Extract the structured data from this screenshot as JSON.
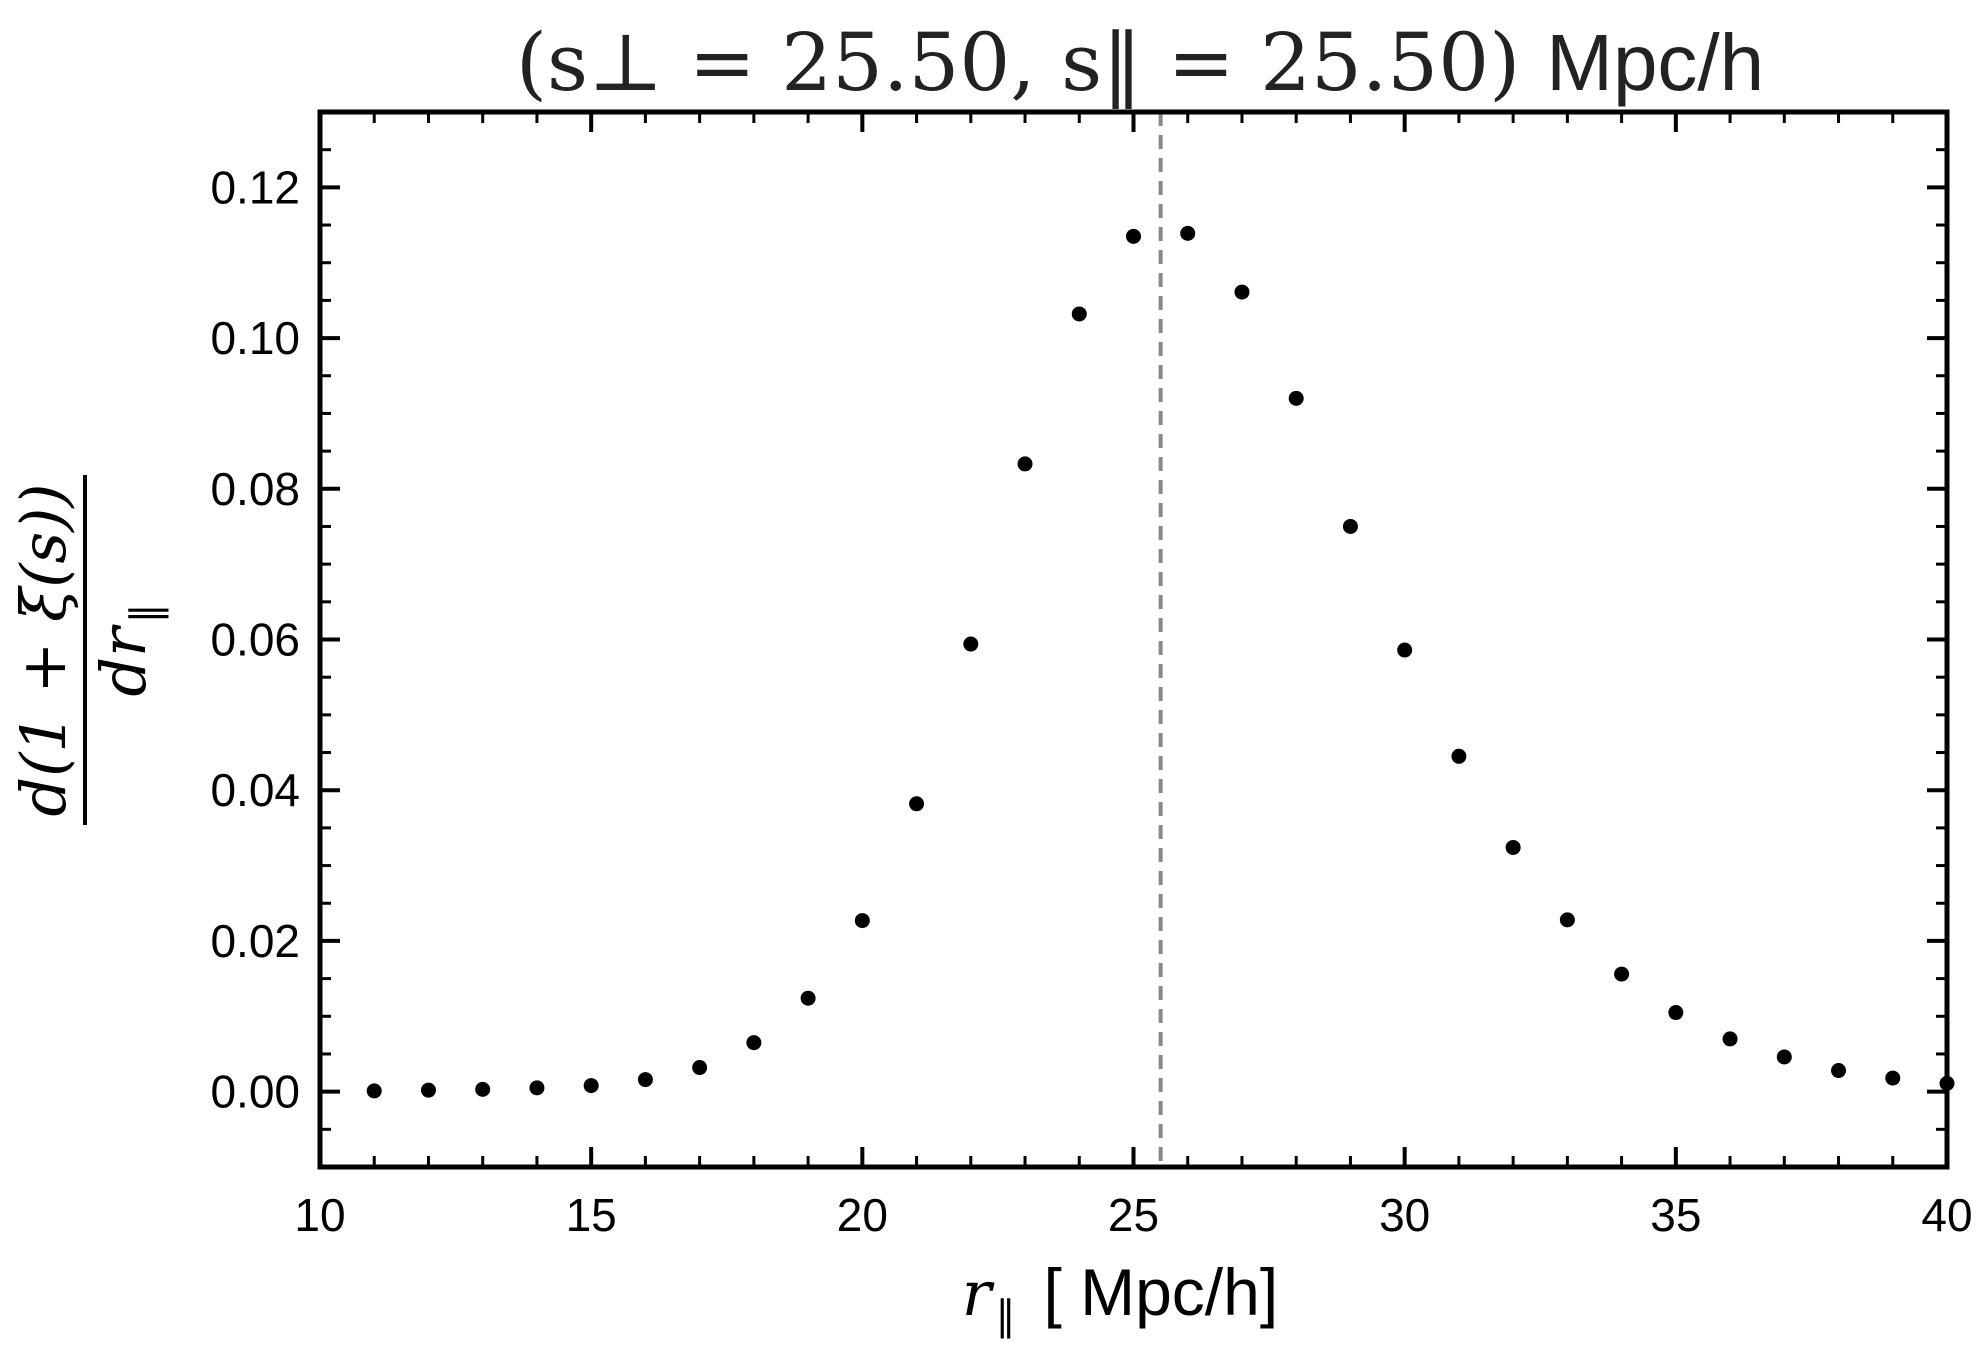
{
  "chart_data": {
    "type": "scatter",
    "title": {
      "math": "(s⊥ = 25.50, s‖ = 25.50)",
      "unit": "Mpc/h"
    },
    "xlabel": {
      "symbol": "r",
      "subscript": "‖",
      "unit": "[ Mpc/h]"
    },
    "ylabel": {
      "numerator": "d(1 + ξ(s))",
      "denominator_symbol": "dr",
      "denominator_subscript": "‖"
    },
    "xlim": [
      10,
      40
    ],
    "ylim": [
      -0.01,
      0.13
    ],
    "xticks": [
      10,
      15,
      20,
      25,
      30,
      35,
      40
    ],
    "xtick_labels": [
      "10",
      "15",
      "20",
      "25",
      "30",
      "35",
      "40"
    ],
    "yticks": [
      0.0,
      0.02,
      0.04,
      0.06,
      0.08,
      0.1,
      0.12
    ],
    "ytick_labels": [
      "0.00",
      "0.02",
      "0.04",
      "0.06",
      "0.08",
      "0.10",
      "0.12"
    ],
    "x_minor_step": 1,
    "y_minor_step": 0.005,
    "reference_line": {
      "x": 25.5,
      "style": "dashed",
      "color": "#888888"
    },
    "marker_color": "#000000",
    "grid": false,
    "series": [
      {
        "x": [
          11,
          12,
          13,
          14,
          15,
          16,
          17,
          18,
          19,
          20,
          21,
          22,
          23,
          24,
          25,
          26,
          27,
          28,
          29,
          30,
          31,
          32,
          33,
          34,
          35,
          36,
          37,
          38,
          39,
          40
        ],
        "y": [
          0.0001,
          0.0002,
          0.0003,
          0.0005,
          0.0008,
          0.0016,
          0.0032,
          0.0065,
          0.0124,
          0.0227,
          0.0382,
          0.0594,
          0.0833,
          0.1032,
          0.1135,
          0.1139,
          0.1061,
          0.092,
          0.075,
          0.0586,
          0.0445,
          0.0324,
          0.0228,
          0.0156,
          0.0105,
          0.007,
          0.0046,
          0.0028,
          0.0018,
          0.0011
        ]
      }
    ]
  }
}
